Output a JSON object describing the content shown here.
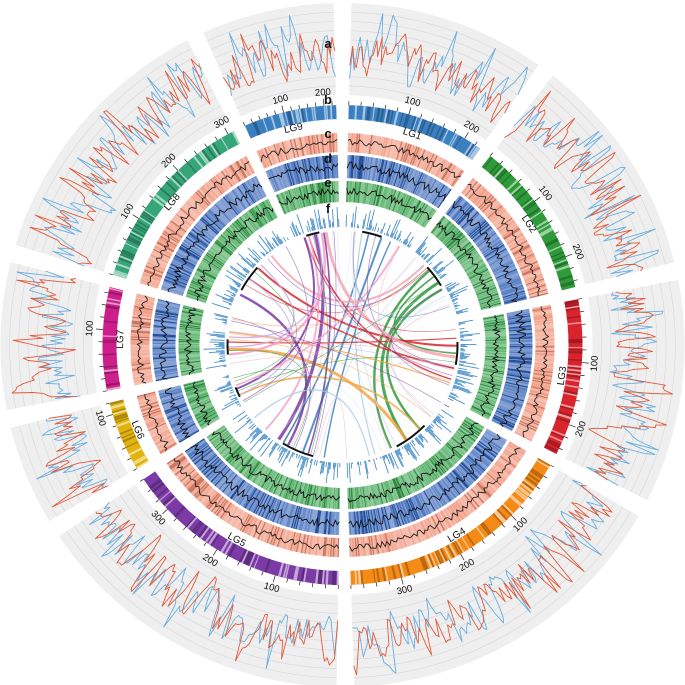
{
  "figure": {
    "panel_letters": [
      "a",
      "b",
      "c",
      "d",
      "e",
      "f"
    ],
    "linkage_groups": [
      {
        "name": "LG1",
        "color": "#3a7fc0",
        "start_deg": 1.5,
        "end_deg": 35,
        "ticks": [
          {
            "value": 100,
            "label": "100"
          },
          {
            "value": 200,
            "label": "200"
          }
        ],
        "length": 230
      },
      {
        "name": "LG2",
        "color": "#2e9a3a",
        "start_deg": 38,
        "end_deg": 76,
        "ticks": [
          {
            "value": 100,
            "label": "100"
          },
          {
            "value": 200,
            "label": "200"
          }
        ],
        "length": 250
      },
      {
        "name": "LG3",
        "color": "#d9242e",
        "start_deg": 79,
        "end_deg": 117,
        "ticks": [
          {
            "value": 100,
            "label": "100"
          },
          {
            "value": 200,
            "label": "200"
          }
        ],
        "length": 250
      },
      {
        "name": "LG4",
        "color": "#f58a16",
        "start_deg": 120,
        "end_deg": 178,
        "ticks": [
          {
            "value": 100,
            "label": "100"
          },
          {
            "value": 200,
            "label": "200"
          },
          {
            "value": 300,
            "label": "300"
          }
        ],
        "length": 380
      },
      {
        "name": "LG5",
        "color": "#7b3aa6",
        "start_deg": 181,
        "end_deg": 236,
        "ticks": [
          {
            "value": 100,
            "label": "100"
          },
          {
            "value": 200,
            "label": "200"
          },
          {
            "value": 300,
            "label": "300"
          }
        ],
        "length": 360
      },
      {
        "name": "LG6",
        "color": "#e2b30e",
        "start_deg": 239,
        "end_deg": 256,
        "ticks": [
          {
            "value": 100,
            "label": "100"
          }
        ],
        "length": 120
      },
      {
        "name": "LG7",
        "color": "#cc1f8a",
        "start_deg": 259,
        "end_deg": 284,
        "ticks": [
          {
            "value": 100,
            "label": "100"
          }
        ],
        "length": 170
      },
      {
        "name": "LG8",
        "color": "#37a57a",
        "start_deg": 287,
        "end_deg": 333,
        "ticks": [
          {
            "value": 100,
            "label": "100"
          },
          {
            "value": 200,
            "label": "200"
          },
          {
            "value": 300,
            "label": "300"
          }
        ],
        "length": 310
      },
      {
        "name": "LG9",
        "color": "#3a7fc0",
        "start_deg": 336,
        "end_deg": 358.5,
        "ticks": [
          {
            "value": 100,
            "label": "100"
          },
          {
            "value": 200,
            "label": "200"
          }
        ],
        "length": 230
      }
    ]
  },
  "colors": {
    "track_a_bg": "#efefef",
    "track_a_line1": "#e25a3c",
    "track_a_line2": "#6aaee0",
    "track_c": "#f08d72",
    "track_d": "#2c5db4",
    "track_e": "#34a04a",
    "track_f_bars": "#4a90cc",
    "inner_black_arc": "#111111",
    "link_colors": [
      "#3a7fc0",
      "#a9cbe8",
      "#2e9a3a",
      "#d9242e",
      "#f4a6b0",
      "#f5a443",
      "#7b3aa6",
      "#c9a8e0",
      "#f2a0c8",
      "#cfe3f3"
    ]
  }
}
